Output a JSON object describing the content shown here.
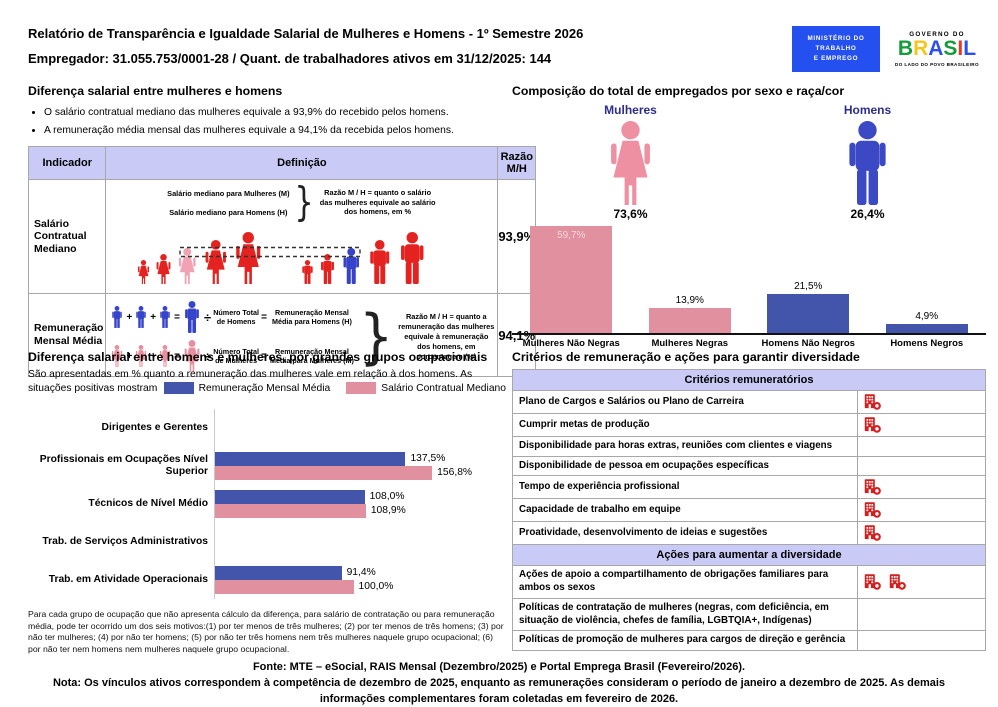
{
  "colors": {
    "lavender_header": "#c9caf5",
    "bar_pink": "#e0909f",
    "bar_blue": "#4355ab",
    "figure_red": "#e42320",
    "figure_pink": "#f2a3b3",
    "figure_blue": "#3644c9",
    "pictogram_pink": "#ee8fa2",
    "pictogram_blue": "#3b49c4",
    "navy_label": "#2d2d8c",
    "icon_red": "#d41f1f",
    "ministry_blue": "#2450f0"
  },
  "header": {
    "title": "Relatório de Transparência e Igualdade Salarial de Mulheres e Homens - 1º Semestre 2026",
    "subtitle": "Empregador: 31.055.753/0001-28 / Quant. de trabalhadores ativos em 31/12/2025: 144",
    "logo_ministry_lines": [
      "MINISTÉRIO DO",
      "TRABALHO",
      "E EMPREGO"
    ],
    "logo_gov_top": "GOVERNO DO",
    "logo_gov_name": "BRASIL",
    "logo_gov_colors": [
      "#149c3a",
      "#f6c61b",
      "#2b4ff0",
      "#149c3a",
      "#e23a2e",
      "#2b4ff0"
    ],
    "logo_gov_tagline": "DO LADO DO POVO BRASILEIRO"
  },
  "salary_gap": {
    "title": "Diferença salarial entre mulheres e homens",
    "bullets": [
      "O salário contratual mediano das mulheres equivale a 93,9% do recebido pelos homens.",
      "A remuneração média mensal das mulheres equivale a 94,1% da recebida pelos homens."
    ],
    "table": {
      "headers": [
        "Indicador",
        "Definição",
        "Razão M/H"
      ],
      "rows": [
        {
          "indicator": "Salário Contratual Mediano",
          "def_line1": "Salário mediano para Mulheres (M)",
          "def_line2": "Salário mediano para Homens (H)",
          "def_ratio": "Razão M / H = quanto o salário das mulheres equivale ao salário dos homens, em %",
          "ratio": "93,9%"
        },
        {
          "indicator": "Remuneração Mensal Média",
          "men_divisor": "Número Total de Homens",
          "men_result": "Remuneração Mensal Média para Homens (H)",
          "women_divisor": "Número Total de Mulheres",
          "women_result": "Remuneração Mensal Média para Mulheres (M)",
          "def_ratio": "Razão M / H = quanto a remuneração das mulheres equivale à remuneração dos homens, em porcentagem (%)",
          "ratio": "94,1%"
        }
      ]
    }
  },
  "composition": {
    "title": "Composição do total de empregados por sexo e raça/cor",
    "women_label": "Mulheres",
    "women_pct": "73,6%",
    "men_label": "Homens",
    "men_pct": "26,4%"
  },
  "occupational": {
    "title": "Diferença salarial entre homens e mulheres, por grandes grupos ocupacionais",
    "subtitle": "São apresentadas em % quanto a remuneração das mulheres vale em relação à dos homens. As situações positivas mostram valores maiores ou iguais a 100%",
    "legend": [
      "Remuneração Mensal Média",
      "Salário Contratual Mediano"
    ],
    "footnote": "Para cada grupo de ocupação que não apresenta cálculo da diferença, para salário de contratação ou para remuneração média, pode ter ocorrido um dos seis motivos:(1) por ter menos de três mulheres; (2) por ter menos de três homens; (3) por não ter mulheres; (4) por não ter homens; (5) por não ter três homens nem três mulheres naquele grupo ocupacional; (6) por não ter nem homens nem mulheres naquele grupo ocupacional."
  },
  "criteria": {
    "title": "Critérios de remuneração e ações para garantir diversidade",
    "section1": "Critérios remuneratórios",
    "rows1": [
      {
        "label": "Plano de Cargos e Salários ou Plano de Carreira",
        "icons": 1
      },
      {
        "label": "Cumprir metas de produção",
        "icons": 1
      },
      {
        "label": "Disponibilidade para horas extras, reuniões com clientes e viagens",
        "icons": 0
      },
      {
        "label": "Disponibilidade de pessoa em ocupações específicas",
        "icons": 0
      },
      {
        "label": "Tempo de experiência profissional",
        "icons": 1
      },
      {
        "label": "Capacidade de trabalho em equipe",
        "icons": 1
      },
      {
        "label": "Proatividade, desenvolvimento de ideias e sugestões",
        "icons": 1
      }
    ],
    "section2": "Ações para aumentar a diversidade",
    "rows2": [
      {
        "label": "Ações de apoio a compartilhamento de obrigações familiares para ambos os sexos",
        "icons": 2
      },
      {
        "label": "Políticas de contratação de mulheres (negras, com deficiência, em situação de violência, chefes de família, LGBTQIA+, Indígenas)",
        "icons": 0
      },
      {
        "label": "Políticas de promoção de mulheres para cargos de direção e gerência",
        "icons": 0
      }
    ]
  },
  "footer": {
    "fonte": "Fonte: MTE – eSocial, RAIS Mensal (Dezembro/2025) e Portal Emprega Brasil (Fevereiro/2026).",
    "nota": "Nota: Os vínculos ativos correspondem à competência de dezembro de 2025, enquanto as remunerações consideram o período de janeiro a dezembro de 2025. As demais informações complementares foram coletadas em fevereiro de 2026."
  },
  "chart_data": [
    {
      "type": "bar",
      "title": "Composição do total de empregados por sexo e raça/cor",
      "categories": [
        "Mulheres Não Negras",
        "Mulheres Negras",
        "Homens Não Negros",
        "Homens Negros"
      ],
      "values": [
        59.7,
        13.9,
        21.5,
        4.9
      ],
      "value_labels": [
        "59,7%",
        "13,9%",
        "21,5%",
        "4,9%"
      ],
      "colors": [
        "#e0909f",
        "#e0909f",
        "#4355ab",
        "#4355ab"
      ],
      "label_inside": [
        true,
        false,
        false,
        false
      ],
      "totals": {
        "Mulheres": 73.6,
        "Homens": 26.4
      },
      "unit": "%",
      "ylim": [
        0,
        62
      ],
      "grid": false,
      "legend_position": "none"
    },
    {
      "type": "bar",
      "orientation": "horizontal",
      "title": "Diferença salarial entre homens e mulheres, por grandes grupos ocupacionais",
      "categories": [
        "Dirigentes e Gerentes",
        "Profissionais em Ocupações Nível Superior",
        "Técnicos de Nível Médio",
        "Trab. de Serviços Administrativos",
        "Trab. em Atividade Operacionais"
      ],
      "series": [
        {
          "name": "Remuneração Mensal Média",
          "color": "#4355ab",
          "values": [
            null,
            137.5,
            108.0,
            null,
            91.4
          ],
          "labels": [
            "",
            "137,5%",
            "108,0%",
            "",
            "91,4%"
          ]
        },
        {
          "name": "Salário Contratual Mediano",
          "color": "#e0909f",
          "values": [
            null,
            156.8,
            108.9,
            null,
            100.0
          ],
          "labels": [
            "",
            "156,8%",
            "108,9%",
            "",
            "100,0%"
          ]
        }
      ],
      "unit": "%",
      "xlim": [
        0,
        170
      ],
      "grid": false,
      "legend_position": "top-right"
    }
  ]
}
